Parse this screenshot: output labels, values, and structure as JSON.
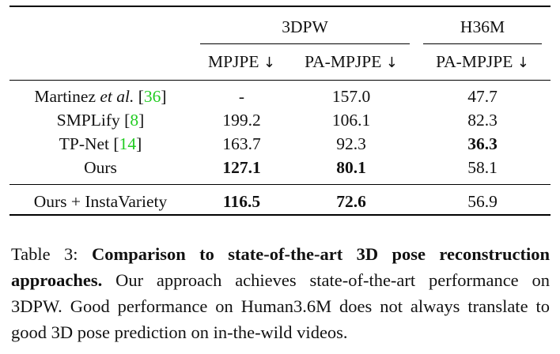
{
  "table": {
    "group_headers": [
      {
        "label": "3DPW"
      },
      {
        "label": "H36M"
      }
    ],
    "columns": [
      {
        "label": "MPJPE",
        "arrow": "↓"
      },
      {
        "label": "PA-MPJPE",
        "arrow": "↓"
      },
      {
        "label": "PA-MPJPE",
        "arrow": "↓"
      }
    ],
    "rows": [
      {
        "method": "Martinez ",
        "method_em": "et al.",
        "ref": "36",
        "cells": [
          "-",
          "157.0",
          "47.7"
        ],
        "bold": [
          false,
          false,
          false
        ]
      },
      {
        "method": "SMPLify ",
        "method_em": "",
        "ref": "8",
        "cells": [
          "199.2",
          "106.1",
          "82.3"
        ],
        "bold": [
          false,
          false,
          false
        ]
      },
      {
        "method": "TP-Net ",
        "method_em": "",
        "ref": "14",
        "cells": [
          "163.7",
          "92.3",
          "36.3"
        ],
        "bold": [
          false,
          false,
          true
        ]
      },
      {
        "method": "Ours",
        "method_em": "",
        "ref": "",
        "cells": [
          "127.1",
          "80.1",
          "58.1"
        ],
        "bold": [
          true,
          true,
          false
        ]
      }
    ],
    "final_row": {
      "method": "Ours + InstaVariety",
      "cells": [
        "116.5",
        "72.6",
        "56.9"
      ],
      "bold": [
        true,
        true,
        false
      ]
    }
  },
  "caption": {
    "label": "Table 3:",
    "bold_text": "Comparison to state-of-the-art 3D pose reconstruction approaches.",
    "text": "Our approach achieves state-of-the-art performance on 3DPW. Good performance on Human3.6M does not always translate to good 3D pose prediction on in-the-wild videos."
  }
}
